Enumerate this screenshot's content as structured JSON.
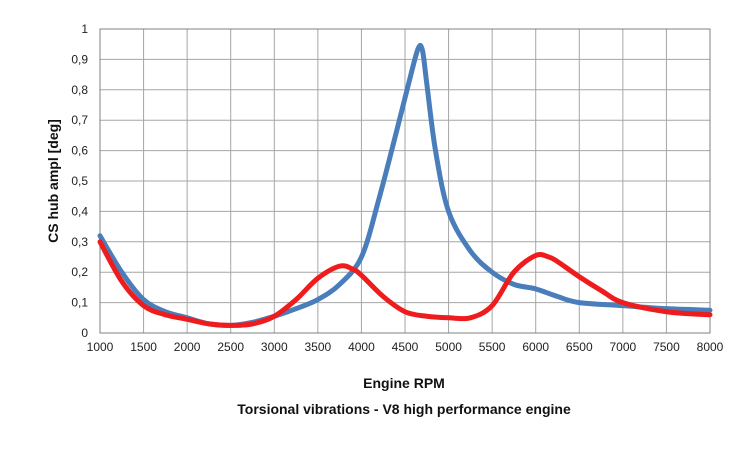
{
  "chart_data": {
    "type": "line",
    "title": "Torsional vibrations - V8 high performance engine",
    "xlabel": "Engine RPM",
    "ylabel": "CS hub ampl [deg]",
    "xlim": [
      1000,
      8000
    ],
    "ylim": [
      0,
      1
    ],
    "x_ticks": [
      1000,
      1500,
      2000,
      2500,
      3000,
      3500,
      4000,
      4500,
      5000,
      5500,
      6000,
      6500,
      7000,
      7500,
      8000
    ],
    "x_tick_labels": [
      "1000",
      "1500",
      "2000",
      "2500",
      "3000",
      "3500",
      "4000",
      "4500",
      "5000",
      "5500",
      "6000",
      "6500",
      "7000",
      "7500",
      "8000"
    ],
    "y_ticks": [
      0,
      0.1,
      0.2,
      0.3,
      0.4,
      0.5,
      0.6,
      0.7,
      0.8,
      0.9,
      1
    ],
    "y_tick_labels": [
      "0",
      "0,1",
      "0,2",
      "0,3",
      "0,4",
      "0,5",
      "0,6",
      "0,7",
      "0,8",
      "0,9",
      "1"
    ],
    "grid": true,
    "legend": "none",
    "series": [
      {
        "color": "#4a7ebb",
        "x": [
          1000,
          1250,
          1500,
          1750,
          2000,
          2250,
          2500,
          2750,
          3000,
          3250,
          3500,
          3750,
          4000,
          4200,
          4400,
          4550,
          4650,
          4700,
          4750,
          4850,
          5000,
          5250,
          5500,
          5750,
          6000,
          6250,
          6500,
          7000,
          7500,
          8000
        ],
        "y": [
          0.32,
          0.2,
          0.11,
          0.07,
          0.05,
          0.03,
          0.025,
          0.035,
          0.055,
          0.08,
          0.11,
          0.16,
          0.25,
          0.44,
          0.66,
          0.83,
          0.935,
          0.93,
          0.82,
          0.6,
          0.4,
          0.27,
          0.2,
          0.16,
          0.145,
          0.12,
          0.1,
          0.09,
          0.08,
          0.075
        ]
      },
      {
        "color": "#ee1c1c",
        "x": [
          1000,
          1250,
          1500,
          1750,
          2000,
          2250,
          2500,
          2750,
          3000,
          3250,
          3500,
          3750,
          3900,
          4000,
          4250,
          4500,
          4750,
          5000,
          5250,
          5500,
          5750,
          6000,
          6150,
          6250,
          6500,
          6750,
          7000,
          7500,
          8000
        ],
        "y": [
          0.3,
          0.17,
          0.09,
          0.06,
          0.045,
          0.03,
          0.025,
          0.03,
          0.055,
          0.11,
          0.18,
          0.22,
          0.21,
          0.19,
          0.12,
          0.07,
          0.055,
          0.05,
          0.05,
          0.09,
          0.2,
          0.255,
          0.25,
          0.235,
          0.185,
          0.14,
          0.1,
          0.07,
          0.06
        ]
      }
    ]
  }
}
